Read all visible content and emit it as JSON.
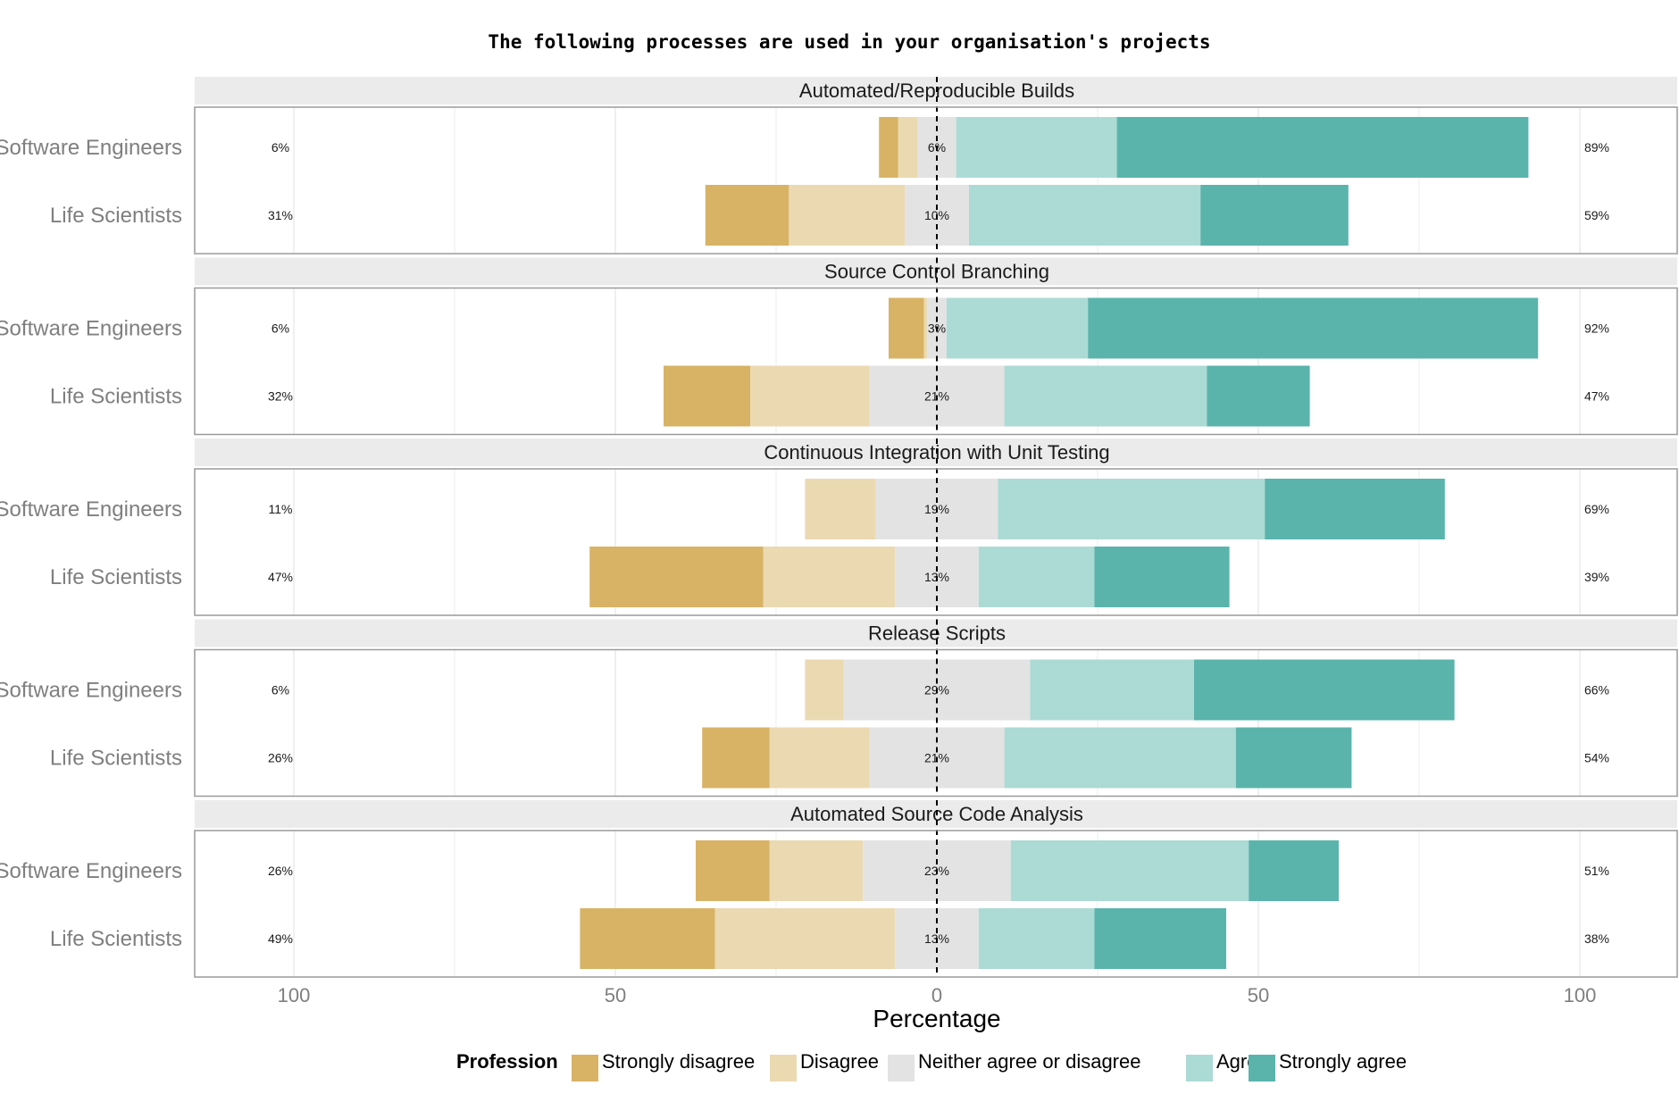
{
  "chart_data": {
    "type": "bar",
    "subtype": "diverging-stacked-likert",
    "title": "The following processes are used in your organisation's projects",
    "xlabel": "Percentage",
    "xlim": [
      -115,
      115
    ],
    "xticks": [
      100,
      50,
      0,
      50,
      100
    ],
    "xtick_values": [
      -100,
      -50,
      0,
      50,
      100
    ],
    "legend": {
      "title": "Profession",
      "position": "bottom",
      "items": [
        {
          "label": "Strongly disagree",
          "color": "#d8b365"
        },
        {
          "label": "Disagree",
          "color": "#ebd9b2"
        },
        {
          "label": "Neither agree or disagree",
          "color": "#e3e3e3"
        },
        {
          "label": "Agree",
          "color": "#acdad5"
        },
        {
          "label": "Strongly agree",
          "color": "#5ab4ac"
        }
      ]
    },
    "panels": [
      {
        "title": "Automated/Reproducible Builds",
        "rows": [
          {
            "label": "Software Engineers",
            "values": [
              3,
              3,
              6,
              25,
              64
            ],
            "left_pct": "6%",
            "center_pct": "6%",
            "right_pct": "89%"
          },
          {
            "label": "Life Scientists",
            "values": [
              13,
              18,
              10,
              36,
              23
            ],
            "left_pct": "31%",
            "center_pct": "10%",
            "right_pct": "59%"
          }
        ]
      },
      {
        "title": "Source Control Branching",
        "rows": [
          {
            "label": "Software Engineers",
            "values": [
              5.5,
              0.5,
              3,
              22,
              70
            ],
            "left_pct": "6%",
            "center_pct": "3%",
            "right_pct": "92%"
          },
          {
            "label": "Life Scientists",
            "values": [
              13.5,
              18.5,
              21,
              31.5,
              16
            ],
            "left_pct": "32%",
            "center_pct": "21%",
            "right_pct": "47%"
          }
        ]
      },
      {
        "title": "Continuous Integration with Unit Testing",
        "rows": [
          {
            "label": "Software Engineers",
            "values": [
              0,
              11,
              19,
              41.5,
              28
            ],
            "left_pct": "11%",
            "center_pct": "19%",
            "right_pct": "69%"
          },
          {
            "label": "Life Scientists",
            "values": [
              27,
              20.5,
              13,
              18,
              21
            ],
            "left_pct": "47%",
            "center_pct": "13%",
            "right_pct": "39%"
          }
        ]
      },
      {
        "title": "Release Scripts",
        "rows": [
          {
            "label": "Software Engineers",
            "values": [
              0,
              6,
              29,
              25.5,
              40.5
            ],
            "left_pct": "6%",
            "center_pct": "29%",
            "right_pct": "66%"
          },
          {
            "label": "Life Scientists",
            "values": [
              10.5,
              15.5,
              21,
              36,
              18
            ],
            "left_pct": "26%",
            "center_pct": "21%",
            "right_pct": "54%"
          }
        ]
      },
      {
        "title": "Automated Source Code Analysis",
        "rows": [
          {
            "label": "Software Engineers",
            "values": [
              11.5,
              14.5,
              23,
              37,
              14
            ],
            "left_pct": "26%",
            "center_pct": "23%",
            "right_pct": "51%"
          },
          {
            "label": "Life Scientists",
            "values": [
              21,
              28,
              13,
              18,
              20.5
            ],
            "left_pct": "49%",
            "center_pct": "13%",
            "right_pct": "38%"
          }
        ]
      }
    ]
  }
}
